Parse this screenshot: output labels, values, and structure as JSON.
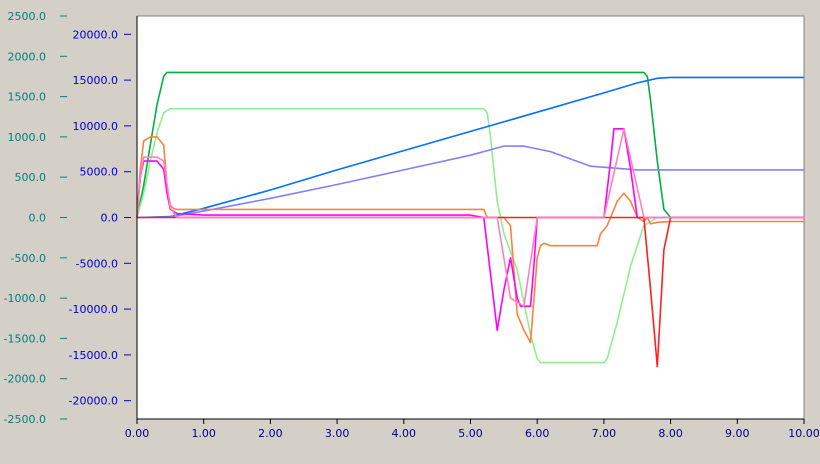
{
  "chart_data": {
    "type": "line",
    "title": "",
    "xlabel": "",
    "ylabel": "",
    "xlim": [
      0,
      10
    ],
    "x_ticks": [
      "0.00",
      "1.00",
      "2.00",
      "3.00",
      "4.00",
      "5.00",
      "6.00",
      "7.00",
      "8.00",
      "9.00",
      "10.00"
    ],
    "axes": [
      {
        "name": "left-outer",
        "color": "#008080",
        "ylim": [
          -2500,
          2500
        ],
        "ticks": [
          "2500.0",
          "2000.0",
          "1500.0",
          "1000.0",
          "500.0",
          "0.0",
          "-500.0",
          "-1000.0",
          "-1500.0",
          "-2000.0",
          "-2500.0"
        ],
        "tick_values": [
          2500,
          2000,
          1500,
          1000,
          500,
          0,
          -500,
          -1000,
          -1500,
          -2000,
          -2500
        ]
      },
      {
        "name": "left-inner",
        "color": "#0000cc",
        "ylim": [
          -22000,
          22000
        ],
        "ticks": [
          "20000.0",
          "15000.0",
          "10000.0",
          "5000.0",
          "0.0",
          "-5000.0",
          "-10000.0",
          "-15000.0",
          "-20000.0"
        ],
        "tick_values": [
          20000,
          15000,
          10000,
          5000,
          0,
          -5000,
          -10000,
          -15000,
          -20000
        ]
      }
    ],
    "grid": false,
    "legend": "none",
    "series": [
      {
        "color": "#00b040",
        "axis": 0,
        "x": [
          0,
          0.1,
          0.2,
          0.3,
          0.4,
          0.45,
          0.5,
          7.6,
          7.65,
          7.7,
          7.8,
          7.9,
          8.0,
          10.0
        ],
        "y": [
          0,
          400,
          900,
          1400,
          1750,
          1800,
          1800,
          1800,
          1750,
          1450,
          700,
          100,
          0,
          0
        ]
      },
      {
        "color": "#90ee90",
        "axis": 0,
        "x": [
          0,
          0.1,
          0.2,
          0.3,
          0.4,
          0.5,
          5.2,
          5.25,
          5.3,
          5.4,
          5.5,
          5.7,
          5.9,
          6.0,
          6.05,
          7.0,
          7.05,
          7.2,
          7.4,
          7.6,
          7.8,
          7.9,
          8.0,
          10.0
        ],
        "y": [
          0,
          300,
          700,
          1050,
          1300,
          1350,
          1350,
          1300,
          1000,
          200,
          -200,
          -650,
          -1450,
          -1750,
          -1800,
          -1800,
          -1750,
          -1300,
          -600,
          -100,
          0,
          0,
          0,
          0
        ]
      },
      {
        "color": "#0070ff",
        "axis": 1,
        "x": [
          0,
          0.5,
          1,
          2,
          3,
          4,
          5,
          6,
          7,
          7.5,
          7.8,
          8.0,
          10.0
        ],
        "y": [
          0,
          100,
          1000,
          3000,
          5200,
          7300,
          9400,
          11500,
          13600,
          14700,
          15200,
          15300,
          15300
        ]
      },
      {
        "color": "#8080ff",
        "axis": 1,
        "x": [
          0,
          0.5,
          1,
          2,
          3,
          4,
          5,
          5.5,
          5.8,
          6.2,
          6.8,
          7.5,
          8,
          10
        ],
        "y": [
          0,
          50,
          700,
          2100,
          3600,
          5200,
          6800,
          7800,
          7800,
          7200,
          5600,
          5200,
          5200,
          5200
        ]
      },
      {
        "color": "#ff8040",
        "axis": 0,
        "x": [
          0,
          0.05,
          0.1,
          0.2,
          0.3,
          0.4,
          0.45,
          0.5,
          0.55,
          0.6,
          1,
          2,
          3,
          4,
          5,
          5.2,
          5.25,
          5.4,
          5.5,
          5.6,
          5.7,
          5.8,
          5.9,
          6.0,
          6.05,
          6.1,
          6.2,
          6.5,
          6.9,
          6.95,
          7.05,
          7.1,
          7.2,
          7.3,
          7.4,
          7.5,
          7.6,
          7.65,
          7.7,
          7.8,
          8,
          10
        ],
        "y": [
          0,
          600,
          950,
          1000,
          1000,
          900,
          400,
          150,
          110,
          100,
          100,
          100,
          100,
          100,
          100,
          100,
          0,
          0,
          0,
          -100,
          -1200,
          -1400,
          -1550,
          -500,
          -350,
          -320,
          -350,
          -350,
          -350,
          -200,
          -100,
          0,
          200,
          300,
          200,
          0,
          -50,
          0,
          -80,
          -60,
          -50,
          -50
        ]
      },
      {
        "color": "#ff00ff",
        "axis": 0,
        "x": [
          0,
          0.05,
          0.1,
          0.2,
          0.3,
          0.4,
          0.45,
          0.5,
          0.6,
          1,
          2,
          3,
          4,
          5,
          5.2,
          5.3,
          5.4,
          5.5,
          5.6,
          5.7,
          5.75,
          5.8,
          5.9,
          5.95,
          6,
          7,
          7.1,
          7.15,
          7.3,
          7.4,
          7.5,
          7.6,
          8,
          10
        ],
        "y": [
          0,
          500,
          700,
          700,
          700,
          600,
          300,
          100,
          50,
          30,
          30,
          30,
          30,
          30,
          0,
          -700,
          -1400,
          -900,
          -500,
          -1000,
          -1100,
          -1100,
          -1100,
          -600,
          0,
          0,
          700,
          1100,
          1100,
          600,
          0,
          0,
          0,
          0
        ]
      },
      {
        "color": "#ff2020",
        "axis": 0,
        "x": [
          0,
          7.6,
          7.7,
          7.8,
          7.9,
          8.0,
          10.0
        ],
        "y": [
          0,
          0,
          -900,
          -1850,
          -400,
          0,
          0
        ]
      },
      {
        "color": "#ff80c0",
        "axis": 0,
        "x": [
          0,
          0.05,
          0.1,
          0.2,
          0.3,
          0.4,
          0.5,
          0.6,
          1,
          2,
          3,
          4,
          5,
          5.2,
          5.4,
          5.6,
          5.8,
          6,
          7,
          7.3,
          7.6,
          8,
          10
        ],
        "y": [
          0,
          500,
          750,
          750,
          750,
          700,
          120,
          0,
          0,
          0,
          0,
          0,
          0,
          0,
          0,
          -1000,
          -1100,
          0,
          0,
          1100,
          0,
          0,
          0
        ]
      }
    ]
  }
}
